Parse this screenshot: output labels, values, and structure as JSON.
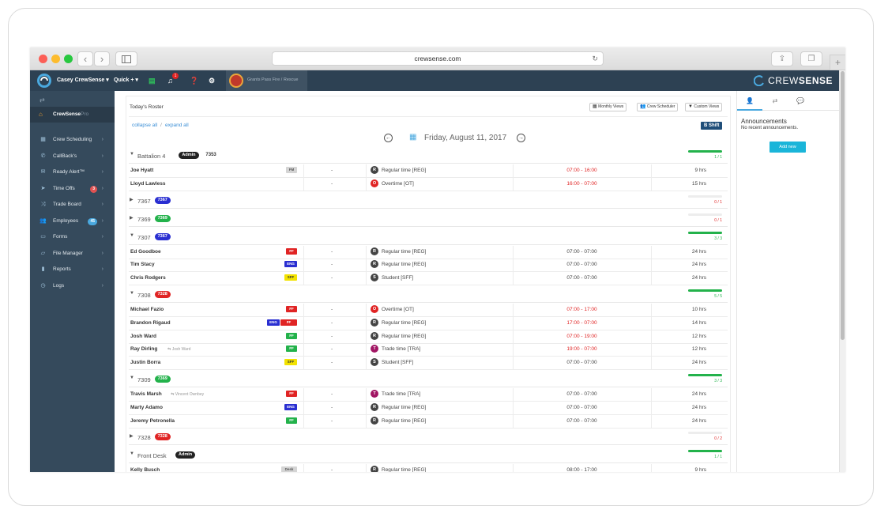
{
  "browser": {
    "url": "crewsense.com"
  },
  "topbar": {
    "user": "Casey CrewSense ▾",
    "quick": "Quick + ▾",
    "bell_badge": "1",
    "department": "Grants Pass Fire / Rescue",
    "brand_a": "CREW",
    "brand_b": "SENSE"
  },
  "sidebar": {
    "home": "CrewSense",
    "home_sub": "Pro",
    "items": [
      {
        "label": "Crew Scheduling",
        "icon": "calendar-icon"
      },
      {
        "label": "CallBack's",
        "icon": "phone-icon"
      },
      {
        "label": "Ready Alert™",
        "icon": "mail-icon"
      },
      {
        "label": "Time Offs",
        "icon": "send-icon",
        "badge": "3"
      },
      {
        "label": "Trade Board",
        "icon": "shuffle-icon"
      },
      {
        "label": "Employees",
        "icon": "users-icon",
        "badge": "45"
      },
      {
        "label": "Forms",
        "icon": "file-icon"
      },
      {
        "label": "File Manager",
        "icon": "folder-icon"
      },
      {
        "label": "Reports",
        "icon": "bar-chart-icon"
      },
      {
        "label": "Logs",
        "icon": "clock-icon"
      }
    ]
  },
  "main": {
    "title": "Today's Roster",
    "monthly": "Monthly Views",
    "scheduler": "Crew Scheduler",
    "custom": "Custom Views",
    "collapse": "collapse all",
    "sep": "/",
    "expand": "expand all",
    "shift": "B Shift",
    "date": "Friday, August 11, 2017",
    "groups": [
      {
        "name": "Battalion 4",
        "tag": "Admin",
        "tag_color": "#222222",
        "extra": "7353",
        "open": true,
        "progress": "1 / 1",
        "fill": 1.0,
        "rows": [
          {
            "name": "Joe Hyatt",
            "rank": "FM",
            "rank_color": "#d4d4d4",
            "rank_text": "#555555",
            "dash": "-",
            "code": "R",
            "code_color": "#444444",
            "type": "Regular time [REG]",
            "time": "07:00 - 16:00",
            "red": true,
            "hours": "9 hrs"
          },
          {
            "name": "Lloyd Lawless",
            "dash": "-",
            "code": "O",
            "code_color": "#e02424",
            "type": "Overtime [OT]",
            "time": "16:00 - 07:00",
            "red": true,
            "hours": "15 hrs"
          }
        ]
      },
      {
        "name": "7367",
        "tag": "7367",
        "tag_color": "#2a2fd1",
        "open": false,
        "progress": "0 / 1",
        "fill": 0
      },
      {
        "name": "7369",
        "tag": "7369",
        "tag_color": "#23b24b",
        "open": false,
        "progress": "0 / 1",
        "fill": 0
      },
      {
        "name": "7307",
        "tag": "7367",
        "tag_color": "#2a2fd1",
        "open": true,
        "progress": "3 / 3",
        "fill": 1.0,
        "rows": [
          {
            "name": "Ed Goodboe",
            "rank": "FF",
            "rank_color": "#e02424",
            "dash": "-",
            "code": "R",
            "code_color": "#444444",
            "type": "Regular time [REG]",
            "time": "07:00 - 07:00",
            "hours": "24 hrs"
          },
          {
            "name": "Tim Stacy",
            "rank": "ENG",
            "rank_color": "#2a2fd1",
            "dash": "-",
            "code": "R",
            "code_color": "#444444",
            "type": "Regular time [REG]",
            "time": "07:00 - 07:00",
            "hours": "24 hrs"
          },
          {
            "name": "Chris Rodgers",
            "rank": "SFF",
            "rank_color": "#f2e200",
            "rank_text": "#333333",
            "dash": "-",
            "code": "S",
            "code_color": "#444444",
            "type": "Student [SFF]",
            "time": "07:00 - 07:00",
            "hours": "24 hrs"
          }
        ]
      },
      {
        "name": "7308",
        "tag": "7328",
        "tag_color": "#e02424",
        "open": true,
        "progress": "5 / 5",
        "fill": 1.0,
        "rows": [
          {
            "name": "Michael Fazio",
            "rank": "FF",
            "rank_color": "#e02424",
            "dash": "-",
            "code": "O",
            "code_color": "#e02424",
            "type": "Overtime [OT]",
            "time": "07:00 - 17:00",
            "red": true,
            "hours": "10 hrs"
          },
          {
            "name": "Brandon Rigaud",
            "rank": "ENG",
            "rank_color": "#2a2fd1",
            "rank2": "FF",
            "rank2_color": "#e02424",
            "dash": "-",
            "code": "R",
            "code_color": "#444444",
            "type": "Regular time [REG]",
            "time": "17:00 - 07:00",
            "red": true,
            "hours": "14 hrs"
          },
          {
            "name": "Josh Ward",
            "rank": "FF",
            "rank_color": "#23b24b",
            "dash": "-",
            "code": "R",
            "code_color": "#444444",
            "type": "Regular time [REG]",
            "time": "07:00 - 19:00",
            "red": true,
            "hours": "12 hrs"
          },
          {
            "name": "Ray Dirling",
            "trade": "Josh Ward",
            "rank": "FF",
            "rank_color": "#23b24b",
            "dash": "-",
            "code": "T",
            "code_color": "#a11563",
            "type": "Trade time [TRA]",
            "time": "19:00 - 07:00",
            "red": true,
            "hours": "12 hrs"
          },
          {
            "name": "Justin Borra",
            "rank": "SFF",
            "rank_color": "#f2e200",
            "rank_text": "#333333",
            "dash": "-",
            "code": "S",
            "code_color": "#444444",
            "type": "Student [SFF]",
            "time": "07:00 - 07:00",
            "hours": "24 hrs"
          }
        ]
      },
      {
        "name": "7309",
        "tag": "7369",
        "tag_color": "#23b24b",
        "open": true,
        "progress": "3 / 3",
        "fill": 1.0,
        "rows": [
          {
            "name": "Travis Marsh",
            "trade": "Vincent Ownbey",
            "rank": "FF",
            "rank_color": "#e02424",
            "dash": "-",
            "code": "T",
            "code_color": "#a11563",
            "type": "Trade time [TRA]",
            "time": "07:00 - 07:00",
            "hours": "24 hrs"
          },
          {
            "name": "Marty Adamo",
            "rank": "ENG",
            "rank_color": "#2a2fd1",
            "dash": "-",
            "code": "R",
            "code_color": "#444444",
            "type": "Regular time [REG]",
            "time": "07:00 - 07:00",
            "hours": "24 hrs"
          },
          {
            "name": "Jeremy Petronella",
            "rank": "FF",
            "rank_color": "#23b24b",
            "dash": "-",
            "code": "R",
            "code_color": "#444444",
            "type": "Regular time [REG]",
            "time": "07:00 - 07:00",
            "hours": "24 hrs"
          }
        ]
      },
      {
        "name": "7328",
        "tag": "7328",
        "tag_color": "#e02424",
        "open": false,
        "progress": "0 / 2",
        "fill": 0
      },
      {
        "name": "Front Desk",
        "tag": "Admin",
        "tag_color": "#222222",
        "open": true,
        "progress": "1 / 1",
        "fill": 1.0,
        "rows": [
          {
            "name": "Kelly Busch",
            "rank": "Desk",
            "rank_color": "#d4d4d4",
            "rank_text": "#555555",
            "dash": "-",
            "code": "R",
            "code_color": "#444444",
            "type": "Regular time [REG]",
            "time": "08:00 - 17:00",
            "hours": "9 hrs"
          }
        ]
      }
    ]
  },
  "right": {
    "title": "Announcements",
    "empty": "No recent announcements.",
    "add": "Add new"
  }
}
